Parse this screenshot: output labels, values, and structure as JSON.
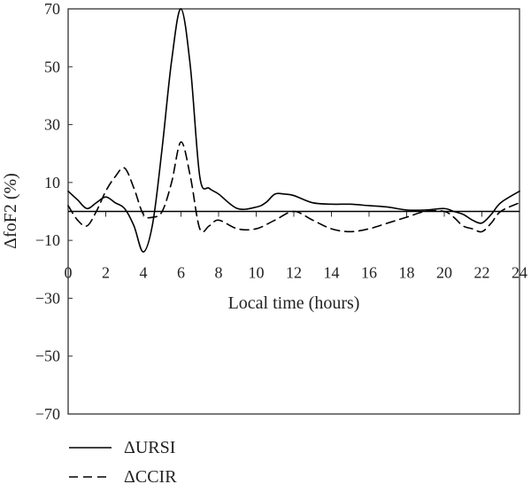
{
  "chart_data": {
    "type": "line",
    "xlabel": "Local time (hours)",
    "ylabel": "ΔfoF2 (%)",
    "xlim": [
      0,
      24
    ],
    "ylim": [
      -70,
      70
    ],
    "x_ticks": [
      0,
      2,
      4,
      6,
      8,
      10,
      12,
      14,
      16,
      18,
      20,
      22,
      24
    ],
    "y_ticks": [
      70,
      50,
      30,
      10,
      -10,
      -30,
      -50,
      -70
    ],
    "y_tick_labels": [
      "70",
      "50",
      "30",
      "10",
      "−10",
      "−30",
      "−50",
      "−70"
    ],
    "reference_line_y": 0,
    "grid": false,
    "legend_position": "bottom-left",
    "series": [
      {
        "name": "ΔURSI",
        "style": "solid",
        "color": "#000000",
        "x": [
          0,
          0.5,
          1,
          1.5,
          2,
          2.5,
          3,
          3.5,
          4,
          4.5,
          5,
          5.5,
          6,
          6.5,
          7,
          7.5,
          8,
          9,
          10,
          10.5,
          11,
          11.5,
          12,
          13,
          14,
          15,
          16,
          17,
          18,
          19,
          20,
          20.5,
          21,
          21.5,
          22,
          22.5,
          23,
          24
        ],
        "values": [
          7,
          4,
          1,
          3,
          5,
          3,
          1,
          -5,
          -14,
          -4,
          22,
          52,
          70,
          50,
          12,
          8,
          6,
          1,
          1.5,
          3,
          6,
          6,
          5.5,
          3,
          2.5,
          2.5,
          2,
          1.5,
          0.5,
          0.5,
          1,
          0,
          -1,
          -3,
          -4,
          -1,
          3,
          7
        ]
      },
      {
        "name": "ΔCCIR",
        "style": "dashed",
        "color": "#000000",
        "x": [
          0,
          0.5,
          1,
          1.5,
          2,
          2.5,
          3,
          3.5,
          4,
          4.5,
          5,
          5.5,
          6,
          6.5,
          7,
          7.5,
          8,
          9,
          10,
          11,
          12,
          13,
          14,
          15,
          16,
          17,
          18,
          19,
          20,
          20.5,
          21,
          21.5,
          22,
          22.5,
          23,
          24
        ],
        "values": [
          2,
          -3,
          -5,
          0,
          7,
          12,
          15,
          8,
          -1,
          -2,
          0,
          10,
          24,
          12,
          -6,
          -5,
          -3,
          -6,
          -6,
          -3,
          0,
          -3,
          -6,
          -7,
          -6,
          -4,
          -2,
          0,
          0,
          -2,
          -5,
          -6,
          -7,
          -4,
          0,
          3
        ]
      }
    ]
  }
}
